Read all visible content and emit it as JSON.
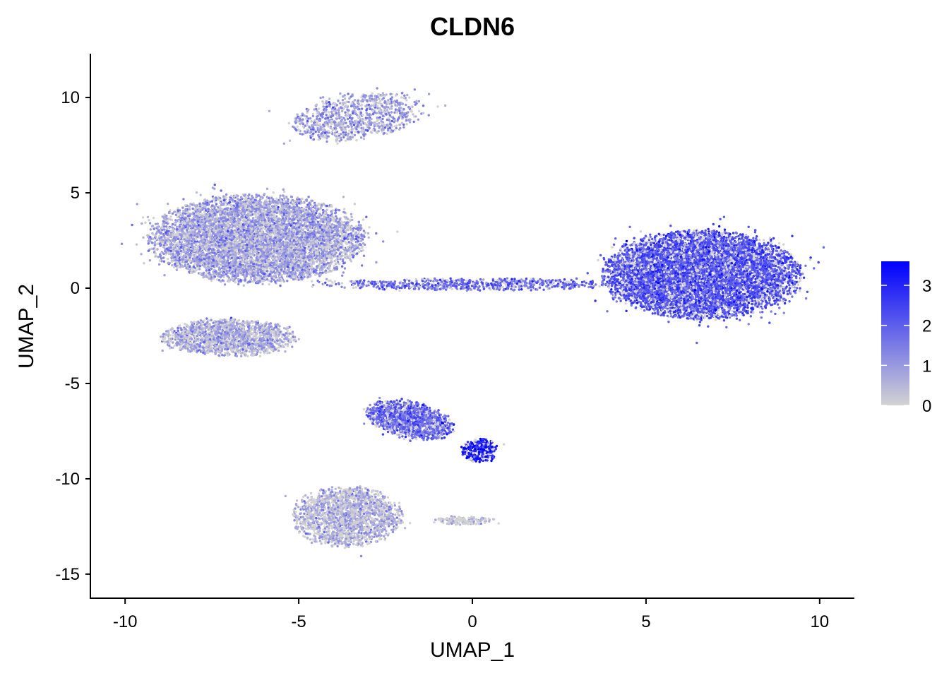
{
  "chart_data": {
    "type": "scatter",
    "title": "CLDN6",
    "xlabel": "UMAP_1",
    "ylabel": "UMAP_2",
    "xlim": [
      -11.0,
      11.0
    ],
    "ylim": [
      -16.3,
      12.3
    ],
    "x_ticks": [
      {
        "value": -10,
        "label": "-10"
      },
      {
        "value": -5,
        "label": "-5"
      },
      {
        "value": 0,
        "label": "0"
      },
      {
        "value": 5,
        "label": "5"
      },
      {
        "value": 10,
        "label": "10"
      }
    ],
    "y_ticks": [
      {
        "value": 10,
        "label": "10"
      },
      {
        "value": 5,
        "label": "5"
      },
      {
        "value": 0,
        "label": "0"
      },
      {
        "value": -5,
        "label": "-5"
      },
      {
        "value": -10,
        "label": "-10"
      },
      {
        "value": -15,
        "label": "-15"
      }
    ],
    "color_scale": {
      "low_color": "#D3D3D3",
      "high_color": "#0000FF",
      "min": 0,
      "max": 3.6,
      "ticks": [
        {
          "value": 0,
          "label": "0"
        },
        {
          "value": 1,
          "label": "1"
        },
        {
          "value": 2,
          "label": "2"
        },
        {
          "value": 3,
          "label": "3"
        }
      ]
    },
    "clusters": [
      {
        "name": "top-upper-cluster",
        "n": 900,
        "cx": -3.3,
        "cy": 9.0,
        "sx": 1.1,
        "sy": 0.7,
        "expr": 1.0,
        "skew": 0.25
      },
      {
        "name": "upper-left-large-cluster",
        "n": 7000,
        "cx": -6.2,
        "cy": 2.6,
        "sx": 1.75,
        "sy": 1.3,
        "expr": 0.9
      },
      {
        "name": "left-lower-cluster",
        "n": 1600,
        "cx": -7.0,
        "cy": -2.6,
        "sx": 1.1,
        "sy": 0.55,
        "expr": 0.75
      },
      {
        "name": "bridge-trajectory",
        "n": 700,
        "cx": 0.0,
        "cy": 0.2,
        "sx": 2.4,
        "sy": 0.18,
        "expr": 1.8
      },
      {
        "name": "right-large-cluster",
        "n": 7500,
        "cx": 6.6,
        "cy": 0.7,
        "sx": 1.6,
        "sy": 1.3,
        "expr": 2.2
      },
      {
        "name": "lower-middle-cluster",
        "n": 1400,
        "cx": -1.8,
        "cy": -6.9,
        "sx": 0.7,
        "sy": 0.55,
        "expr": 1.9,
        "skew": -0.3
      },
      {
        "name": "lower-star-cluster",
        "n": 300,
        "cx": 0.2,
        "cy": -8.5,
        "sx": 0.3,
        "sy": 0.35,
        "expr": 3.2
      },
      {
        "name": "bottom-cluster",
        "n": 1800,
        "cx": -3.6,
        "cy": -12.0,
        "sx": 0.9,
        "sy": 0.9,
        "expr": 0.6
      },
      {
        "name": "bottom-tail",
        "n": 150,
        "cx": -0.2,
        "cy": -12.2,
        "sx": 0.5,
        "sy": 0.12,
        "expr": 0.4
      }
    ]
  }
}
